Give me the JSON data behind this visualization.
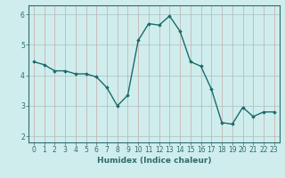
{
  "x": [
    0,
    1,
    2,
    3,
    4,
    5,
    6,
    7,
    8,
    9,
    10,
    11,
    12,
    13,
    14,
    15,
    16,
    17,
    18,
    19,
    20,
    21,
    22,
    23
  ],
  "y": [
    4.45,
    4.35,
    4.15,
    4.15,
    4.05,
    4.05,
    3.95,
    3.6,
    3.0,
    3.35,
    5.15,
    5.7,
    5.65,
    5.95,
    5.45,
    4.45,
    4.3,
    3.55,
    2.45,
    2.4,
    2.95,
    2.65,
    2.8,
    2.8
  ],
  "line_color": "#1a6b6b",
  "marker": "D",
  "markersize": 1.8,
  "linewidth": 1.0,
  "bg_color": "#d0eded",
  "grid_color_major": "#b8c8c8",
  "grid_color_minor": "#c8b8b8",
  "xlabel": "Humidex (Indice chaleur)",
  "xlim": [
    -0.5,
    23.5
  ],
  "ylim": [
    1.8,
    6.3
  ],
  "yticks": [
    2,
    3,
    4,
    5,
    6
  ],
  "xticks": [
    0,
    1,
    2,
    3,
    4,
    5,
    6,
    7,
    8,
    9,
    10,
    11,
    12,
    13,
    14,
    15,
    16,
    17,
    18,
    19,
    20,
    21,
    22,
    23
  ],
  "xtick_labels": [
    "0",
    "1",
    "2",
    "3",
    "4",
    "5",
    "6",
    "7",
    "8",
    "9",
    "10",
    "11",
    "12",
    "13",
    "14",
    "15",
    "16",
    "17",
    "18",
    "19",
    "20",
    "21",
    "22",
    "23"
  ],
  "tick_fontsize": 5.5,
  "xlabel_fontsize": 6.5,
  "axis_color": "#2e6b6b",
  "spine_color": "#2e6b6b"
}
